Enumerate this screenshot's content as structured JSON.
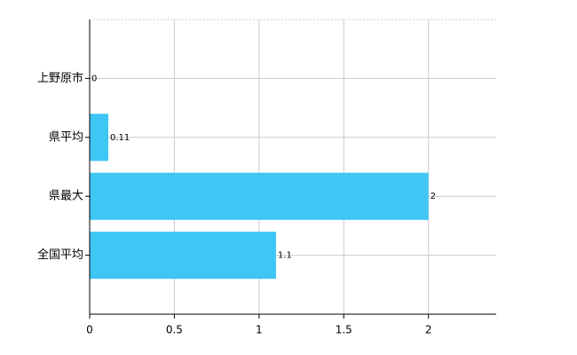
{
  "chart_data": {
    "type": "bar",
    "orientation": "horizontal",
    "categories": [
      "上野原市",
      "県平均",
      "県最大",
      "全国平均"
    ],
    "values": [
      0,
      0.11,
      2,
      1.1
    ],
    "color": "#3ec6f5",
    "xlim": [
      0,
      2.4
    ],
    "xticks": [
      0,
      0.5,
      1,
      1.5,
      2
    ],
    "grid": true
  }
}
